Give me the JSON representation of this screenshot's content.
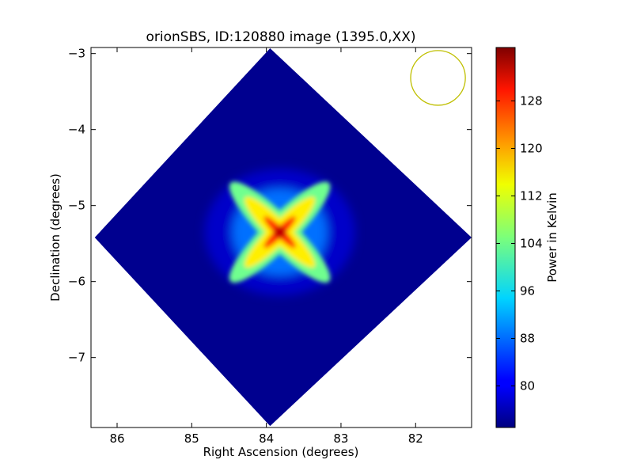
{
  "chart_data": {
    "type": "heatmap",
    "title": "orionSBS, ID:120880 image (1395.0,XX)",
    "xlabel": "Right Ascension (degrees)",
    "ylabel": "Declination (degrees)",
    "xlim": [
      86.35,
      81.25
    ],
    "ylim": [
      -7.92,
      -2.92
    ],
    "x_ticks": [
      86,
      85,
      84,
      83,
      82
    ],
    "y_ticks": [
      -3,
      -4,
      -5,
      -6,
      -7
    ],
    "grid": false,
    "colormap": "jet",
    "colorbar": {
      "label": "Power in Kelvin",
      "range": [
        73,
        137
      ],
      "ticks": [
        80,
        88,
        96,
        104,
        112,
        120,
        128
      ]
    },
    "map_footprint_corners": [
      {
        "ra": 83.95,
        "dec": -2.93
      },
      {
        "ra": 81.25,
        "dec": -5.42
      },
      {
        "ra": 83.95,
        "dec": -7.9
      },
      {
        "ra": 86.3,
        "dec": -5.42
      }
    ],
    "background_level": 74,
    "peak": {
      "ra": 83.82,
      "dec": -5.35,
      "value": 133
    },
    "beam_circle": {
      "ra": 81.7,
      "dec": -3.32,
      "radius_deg": 0.36,
      "color": "#bfbf00"
    }
  }
}
